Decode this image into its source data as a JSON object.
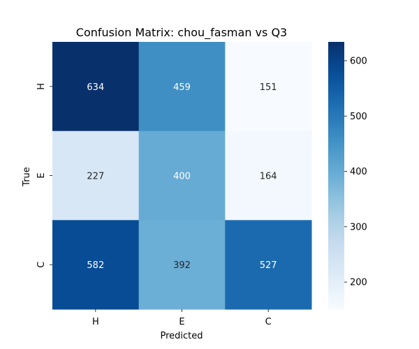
{
  "chart_data": {
    "type": "heatmap",
    "title": "Confusion Matrix: chou_fasman vs Q3",
    "xlabel": "Predicted",
    "ylabel": "True",
    "x_categories": [
      "H",
      "E",
      "C"
    ],
    "y_categories": [
      "H",
      "E",
      "C"
    ],
    "values": [
      [
        634,
        459,
        151
      ],
      [
        227,
        400,
        164
      ],
      [
        582,
        392,
        527
      ]
    ],
    "colormap": "Blues",
    "color_range": [
      151,
      634
    ],
    "colorbar_ticks": [
      200,
      300,
      400,
      500,
      600
    ],
    "colorbar_tick_labels": [
      "200",
      "300",
      "400",
      "500",
      "600"
    ],
    "annotation_colors": {
      "dark_text": "#262626",
      "light_text": "#ffffff"
    }
  }
}
